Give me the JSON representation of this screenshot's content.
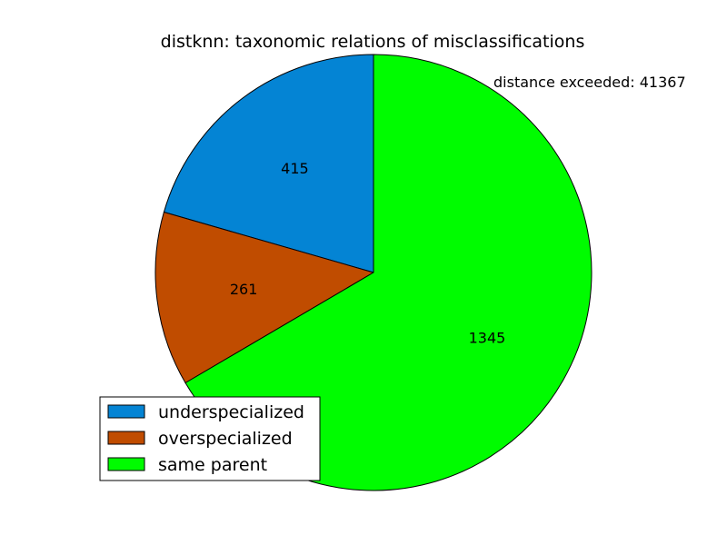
{
  "chart_data": {
    "type": "pie",
    "title": "distknn: taxonomic relations of misclassifications",
    "annotation": "distance exceeded: 41367",
    "legend_position": "lower-left",
    "slices": [
      {
        "label": "underspecialized",
        "value": 415,
        "color": "#0484d4"
      },
      {
        "label": "overspecialized",
        "value": 261,
        "color": "#c04c00"
      },
      {
        "label": "same parent",
        "value": 1345,
        "color": "#00fc00"
      }
    ]
  }
}
